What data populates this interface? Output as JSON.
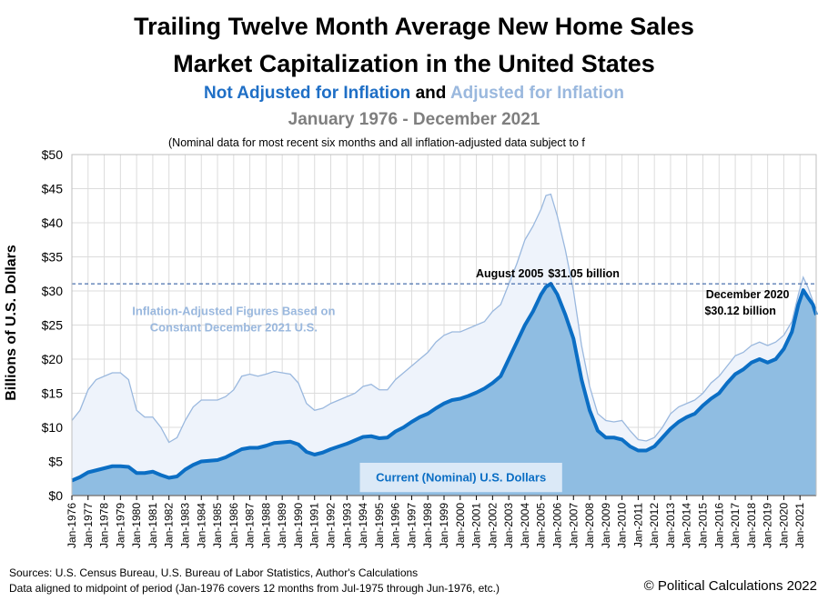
{
  "title": {
    "line1": "Trailing Twelve Month Average New Home Sales",
    "line2": "Market Capitalization in the United States",
    "nominal_label": "Not Adjusted for Inflation",
    "and_label": "and",
    "adjusted_label": "Adjusted for Inflation",
    "period": "January 1976 - December 2021",
    "note": "(Nominal data for most recent six months and all inflation-adjusted data subject to f"
  },
  "ylabel": "Billions of U.S. Dollars",
  "footer": {
    "sources": "Sources: U.S. Census Bureau, U.S. Bureau of Labor Statistics, Author's Calculations",
    "alignment": "Data aligned to midpoint of period (Jan-1976 covers 12 months from Jul-1975 through Jun-1976, etc.)",
    "copyright": "© Political Calculations 2022"
  },
  "colors": {
    "nominal_line": "#0b6ec4",
    "nominal_fill": "#8fbde2",
    "adjusted_line": "#9ab8de",
    "adjusted_fill": "#eef3fb",
    "grid": "#dcdcdc",
    "refline": "#1f4e9a"
  },
  "chart_data": {
    "type": "area",
    "ylim": [
      0,
      50
    ],
    "yticks": [
      0,
      5,
      10,
      15,
      20,
      25,
      30,
      35,
      40,
      45,
      50
    ],
    "ytick_labels": [
      "$0",
      "$5",
      "$10",
      "$15",
      "$20",
      "$25",
      "$30",
      "$35",
      "$40",
      "$45",
      "$50"
    ],
    "xlim": [
      1976,
      2022
    ],
    "xticks": [
      1976,
      1977,
      1978,
      1979,
      1980,
      1981,
      1982,
      1983,
      1984,
      1985,
      1986,
      1987,
      1988,
      1989,
      1990,
      1991,
      1992,
      1993,
      1994,
      1995,
      1996,
      1997,
      1998,
      1999,
      2000,
      2001,
      2002,
      2003,
      2004,
      2005,
      2006,
      2007,
      2008,
      2009,
      2010,
      2011,
      2012,
      2013,
      2014,
      2015,
      2016,
      2017,
      2018,
      2019,
      2020,
      2021
    ],
    "xtick_labels": [
      "Jan-1976",
      "Jan-1977",
      "Jan-1978",
      "Jan-1979",
      "Jan-1980",
      "Jan-1981",
      "Jan-1982",
      "Jan-1983",
      "Jan-1984",
      "Jan-1985",
      "Jan-1986",
      "Jan-1987",
      "Jan-1988",
      "Jan-1989",
      "Jan-1990",
      "Jan-1991",
      "Jan-1992",
      "Jan-1993",
      "Jan-1994",
      "Jan-1995",
      "Jan-1996",
      "Jan-1997",
      "Jan-1998",
      "Jan-1999",
      "Jan-2000",
      "Jan-2001",
      "Jan-2002",
      "Jan-2003",
      "Jan-2004",
      "Jan-2005",
      "Jan-2006",
      "Jan-2007",
      "Jan-2008",
      "Jan-2009",
      "Jan-2010",
      "Jan-2011",
      "Jan-2012",
      "Jan-2013",
      "Jan-2014",
      "Jan-2015",
      "Jan-2016",
      "Jan-2017",
      "Jan-2018",
      "Jan-2019",
      "Jan-2020",
      "Jan-2021"
    ],
    "series": [
      {
        "name": "Inflation-Adjusted",
        "x": [
          1976,
          1976.5,
          1977,
          1977.5,
          1978,
          1978.5,
          1979,
          1979.5,
          1980,
          1980.5,
          1981,
          1981.5,
          1982,
          1982.5,
          1983,
          1983.5,
          1984,
          1984.5,
          1985,
          1985.5,
          1986,
          1986.5,
          1987,
          1987.5,
          1988,
          1988.5,
          1989,
          1989.5,
          1990,
          1990.5,
          1991,
          1991.5,
          1992,
          1992.5,
          1993,
          1993.5,
          1994,
          1994.5,
          1995,
          1995.5,
          1996,
          1996.5,
          1997,
          1997.5,
          1998,
          1998.5,
          1999,
          1999.5,
          2000,
          2000.5,
          2001,
          2001.5,
          2002,
          2002.5,
          2003,
          2003.5,
          2004,
          2004.5,
          2005,
          2005.3,
          2005.6,
          2006,
          2006.5,
          2007,
          2007.5,
          2008,
          2008.5,
          2009,
          2009.5,
          2010,
          2010.5,
          2011,
          2011.5,
          2012,
          2012.5,
          2013,
          2013.5,
          2014,
          2014.5,
          2015,
          2015.5,
          2016,
          2016.5,
          2017,
          2017.5,
          2018,
          2018.5,
          2019,
          2019.5,
          2020,
          2020.5,
          2020.9,
          2021.2,
          2021.5,
          2021.8,
          2022
        ],
        "values": [
          11,
          12.5,
          15.5,
          17,
          17.5,
          18,
          18,
          17,
          12.5,
          11.5,
          11.5,
          10,
          7.8,
          8.5,
          11,
          13,
          14,
          14,
          14,
          14.5,
          15.5,
          17.5,
          17.8,
          17.5,
          17.8,
          18.2,
          18,
          17.8,
          16.5,
          13.5,
          12.5,
          12.8,
          13.5,
          14,
          14.5,
          15,
          16,
          16.3,
          15.5,
          15.5,
          17,
          18,
          19,
          20,
          21,
          22.5,
          23.5,
          24,
          24,
          24.5,
          25,
          25.5,
          27,
          28,
          31,
          34,
          37.5,
          39.5,
          42,
          44,
          44.2,
          41,
          36,
          30,
          22,
          16,
          12,
          11,
          10.8,
          11,
          9.5,
          8.2,
          8,
          8.5,
          10,
          12,
          13,
          13.5,
          14,
          15,
          16.5,
          17.5,
          19,
          20.5,
          21,
          22,
          22.5,
          22,
          22.5,
          23.5,
          25.5,
          29.5,
          32,
          30.5,
          28.5,
          26.5
        ]
      },
      {
        "name": "Current (Nominal) U.S. Dollars",
        "x": [
          1976,
          1976.5,
          1977,
          1977.5,
          1978,
          1978.5,
          1979,
          1979.5,
          1980,
          1980.5,
          1981,
          1981.5,
          1982,
          1982.5,
          1983,
          1983.5,
          1984,
          1984.5,
          1985,
          1985.5,
          1986,
          1986.5,
          1987,
          1987.5,
          1988,
          1988.5,
          1989,
          1989.5,
          1990,
          1990.5,
          1991,
          1991.5,
          1992,
          1992.5,
          1993,
          1993.5,
          1994,
          1994.5,
          1995,
          1995.5,
          1996,
          1996.5,
          1997,
          1997.5,
          1998,
          1998.5,
          1999,
          1999.5,
          2000,
          2000.5,
          2001,
          2001.5,
          2002,
          2002.5,
          2003,
          2003.5,
          2004,
          2004.5,
          2005,
          2005.3,
          2005.6,
          2006,
          2006.5,
          2007,
          2007.5,
          2008,
          2008.5,
          2009,
          2009.5,
          2010,
          2010.5,
          2011,
          2011.5,
          2012,
          2012.5,
          2013,
          2013.5,
          2014,
          2014.5,
          2015,
          2015.5,
          2016,
          2016.5,
          2017,
          2017.5,
          2018,
          2018.5,
          2019,
          2019.5,
          2020,
          2020.5,
          2020.9,
          2021.2,
          2021.5,
          2021.8,
          2022
        ],
        "values": [
          2.2,
          2.7,
          3.4,
          3.7,
          4.0,
          4.3,
          4.3,
          4.2,
          3.3,
          3.3,
          3.5,
          3.0,
          2.6,
          2.8,
          3.8,
          4.5,
          5.0,
          5.1,
          5.2,
          5.6,
          6.2,
          6.8,
          7.0,
          7.0,
          7.3,
          7.7,
          7.8,
          7.9,
          7.5,
          6.4,
          6.0,
          6.3,
          6.8,
          7.2,
          7.6,
          8.1,
          8.6,
          8.7,
          8.4,
          8.5,
          9.4,
          10.0,
          10.8,
          11.5,
          12.0,
          12.8,
          13.5,
          14.0,
          14.2,
          14.6,
          15.1,
          15.7,
          16.5,
          17.5,
          20.0,
          22.5,
          25.0,
          27.0,
          29.5,
          30.6,
          31.05,
          29.5,
          26.5,
          23.0,
          17.0,
          12.5,
          9.5,
          8.5,
          8.5,
          8.2,
          7.2,
          6.6,
          6.6,
          7.2,
          8.5,
          9.8,
          10.8,
          11.5,
          12.0,
          13.2,
          14.2,
          15.0,
          16.5,
          17.8,
          18.5,
          19.5,
          20.0,
          19.5,
          20.0,
          21.5,
          24.0,
          28.0,
          30.12,
          29.0,
          28.0,
          26.5
        ]
      }
    ],
    "reference_line": {
      "value": 31.05
    },
    "annotations": {
      "peak_2005": {
        "date": "August 2005",
        "value_text": "$31.05  billion",
        "x": 2005.6,
        "y": 31.05
      },
      "peak_2020": {
        "date": "December 2020",
        "value_text": "$30.12  billion",
        "x": 2020.9,
        "y": 30.12
      },
      "adjusted_label": [
        "Inflation-Adjusted Figures Based on",
        "Constant December 2021 U.S."
      ],
      "nominal_label": "Current (Nominal) U.S. Dollars"
    }
  }
}
